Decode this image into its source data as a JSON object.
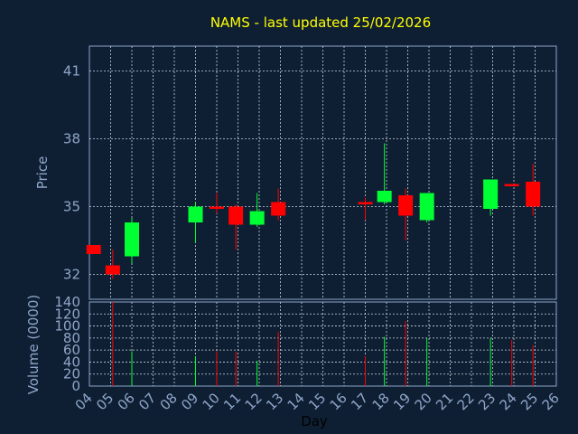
{
  "chart_data": {
    "type": "candlestick",
    "title": "NAMS - last updated 25/02/2026",
    "ylabel": "Price",
    "xlabel": "Day",
    "volume_label": "Volume (0000)",
    "price_ylim": [
      30.9,
      42.1
    ],
    "price_yticks": [
      "41",
      "38",
      "35",
      "32"
    ],
    "price_ytick_values": [
      41,
      38,
      35,
      32
    ],
    "volume_ylim": [
      0,
      140
    ],
    "volume_yticks": [
      "140",
      "120",
      "100",
      "80",
      "60",
      "40",
      "20",
      "0"
    ],
    "volume_ytick_values": [
      140,
      120,
      100,
      80,
      60,
      40,
      20,
      0
    ],
    "x_range": [
      4,
      26
    ],
    "x_ticks": [
      "04",
      "05",
      "06",
      "07",
      "08",
      "09",
      "10",
      "11",
      "12",
      "13",
      "14",
      "15",
      "16",
      "17",
      "18",
      "19",
      "20",
      "21",
      "22",
      "23",
      "24",
      "25",
      "26"
    ],
    "grid": true,
    "up_color": "#00ff33",
    "down_color": "#ff0000",
    "candles": [
      {
        "day": 4.2,
        "open": 33.3,
        "high": 33.3,
        "low": 32.9,
        "close": 32.9,
        "volume": 0
      },
      {
        "day": 5.1,
        "open": 32.4,
        "high": 33.1,
        "low": 31.8,
        "close": 32.0,
        "volume": 140
      },
      {
        "day": 6.0,
        "open": 32.8,
        "high": 34.5,
        "low": 32.5,
        "close": 34.3,
        "volume": 58
      },
      {
        "day": 9.0,
        "open": 34.3,
        "high": 35.2,
        "low": 33.4,
        "close": 35.0,
        "volume": 50
      },
      {
        "day": 10.0,
        "open": 35.0,
        "high": 35.6,
        "low": 34.7,
        "close": 34.9,
        "volume": 58
      },
      {
        "day": 10.9,
        "open": 35.0,
        "high": 35.1,
        "low": 33.1,
        "close": 34.2,
        "volume": 57
      },
      {
        "day": 11.9,
        "open": 34.2,
        "high": 35.6,
        "low": 34.1,
        "close": 34.8,
        "volume": 42
      },
      {
        "day": 12.9,
        "open": 35.2,
        "high": 35.8,
        "low": 34.4,
        "close": 34.6,
        "volume": 90
      },
      {
        "day": 17.0,
        "open": 35.2,
        "high": 35.4,
        "low": 34.4,
        "close": 35.1,
        "volume": 50
      },
      {
        "day": 17.9,
        "open": 35.2,
        "high": 37.8,
        "low": 35.1,
        "close": 35.7,
        "volume": 82
      },
      {
        "day": 18.9,
        "open": 35.5,
        "high": 35.8,
        "low": 33.5,
        "close": 34.6,
        "volume": 108
      },
      {
        "day": 19.9,
        "open": 34.4,
        "high": 35.6,
        "low": 34.3,
        "close": 35.6,
        "volume": 80
      },
      {
        "day": 22.9,
        "open": 34.9,
        "high": 36.2,
        "low": 34.6,
        "close": 36.2,
        "volume": 80
      },
      {
        "day": 23.9,
        "open": 36.0,
        "high": 36.0,
        "low": 35.9,
        "close": 35.9,
        "volume": 77
      },
      {
        "day": 24.9,
        "open": 36.1,
        "high": 36.9,
        "low": 34.6,
        "close": 35.0,
        "volume": 68
      }
    ]
  }
}
